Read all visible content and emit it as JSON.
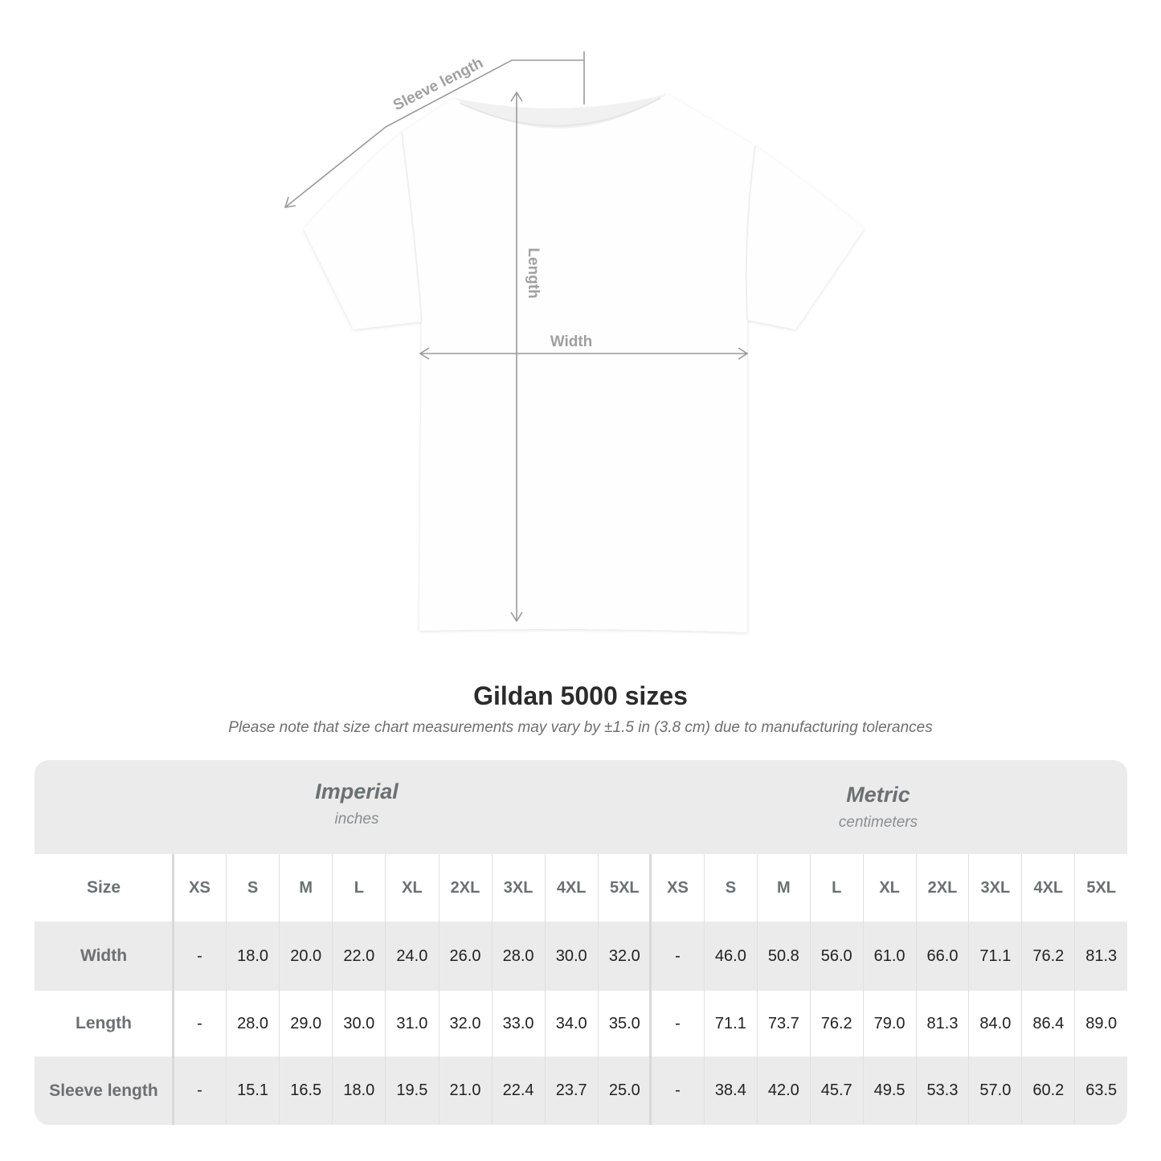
{
  "diagram": {
    "labels": {
      "sleeve": "Sleeve length",
      "length": "Length",
      "width": "Width"
    },
    "shirt_color": "#ffffff",
    "arrow_color": "#9a9a9a"
  },
  "title": "Gildan 5000 sizes",
  "subtitle": "Please note that size chart measurements may vary by ±1.5 in (3.8 cm) due to manufacturing tolerances",
  "table": {
    "imperial": {
      "name": "Imperial",
      "unit": "inches"
    },
    "metric": {
      "name": "Metric",
      "unit": "centimeters"
    },
    "size_label": "Size",
    "sizes": [
      "XS",
      "S",
      "M",
      "L",
      "XL",
      "2XL",
      "3XL",
      "4XL",
      "5XL"
    ],
    "rows": [
      {
        "label": "Width",
        "imperial": [
          "-",
          "18.0",
          "20.0",
          "22.0",
          "24.0",
          "26.0",
          "28.0",
          "30.0",
          "32.0"
        ],
        "metric": [
          "-",
          "46.0",
          "50.8",
          "56.0",
          "61.0",
          "66.0",
          "71.1",
          "76.2",
          "81.3"
        ]
      },
      {
        "label": "Length",
        "imperial": [
          "-",
          "28.0",
          "29.0",
          "30.0",
          "31.0",
          "32.0",
          "33.0",
          "34.0",
          "35.0"
        ],
        "metric": [
          "-",
          "71.1",
          "73.7",
          "76.2",
          "79.0",
          "81.3",
          "84.0",
          "86.4",
          "89.0"
        ]
      },
      {
        "label": "Sleeve length",
        "imperial": [
          "-",
          "15.1",
          "16.5",
          "18.0",
          "19.5",
          "21.0",
          "22.4",
          "23.7",
          "25.0"
        ],
        "metric": [
          "-",
          "38.4",
          "42.0",
          "45.7",
          "49.5",
          "53.3",
          "57.0",
          "60.2",
          "63.5"
        ]
      }
    ]
  }
}
